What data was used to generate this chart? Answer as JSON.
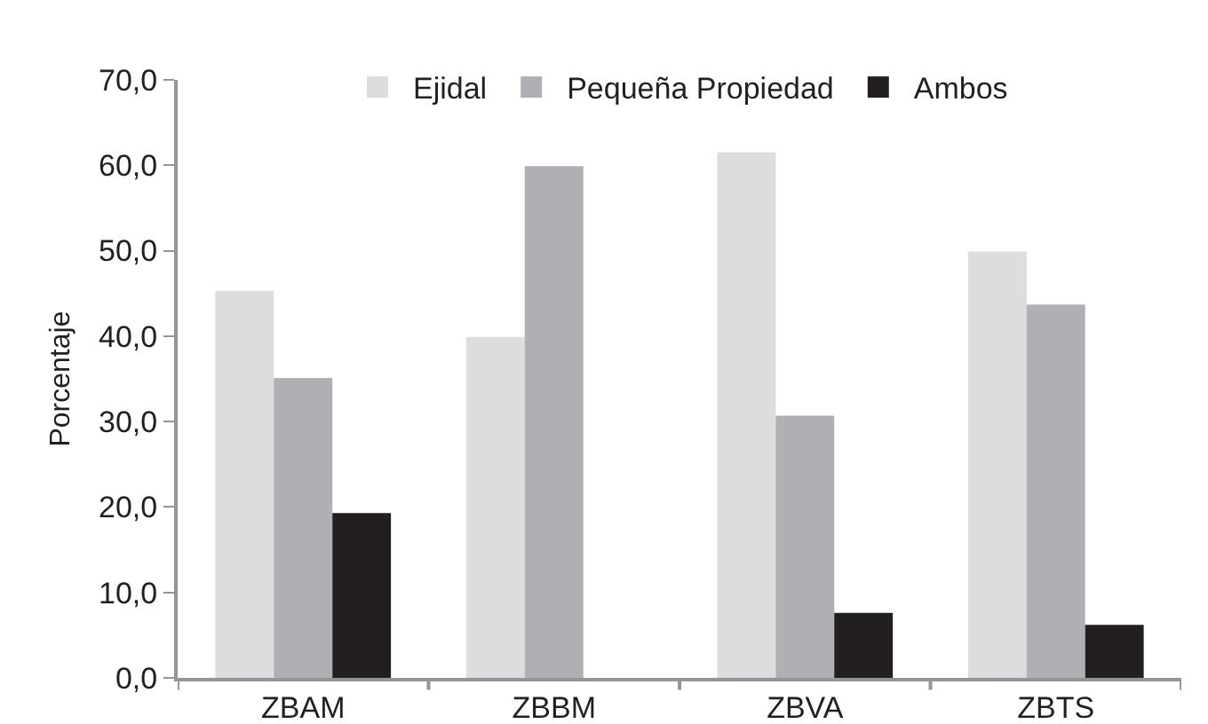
{
  "chart_data": {
    "type": "bar",
    "ylabel": "Porcentaje",
    "categories": [
      "ZBAM",
      "ZBBM",
      "ZBVA",
      "ZBTS"
    ],
    "series": [
      {
        "name": "Ejidal",
        "color": "#dcdddf",
        "values": [
          45.3,
          39.9,
          61.5,
          49.9
        ]
      },
      {
        "name": "Pequeña Propiedad",
        "color": "#afb0b3",
        "values": [
          35.1,
          59.9,
          30.7,
          43.7
        ]
      },
      {
        "name": "Ambos",
        "color": "#231f20",
        "values": [
          19.3,
          0,
          7.6,
          6.2
        ]
      }
    ],
    "ylim": [
      0,
      70
    ],
    "yticks": [
      {
        "value": 0,
        "label": "0,0"
      },
      {
        "value": 10,
        "label": "10,0"
      },
      {
        "value": 20,
        "label": "20,0"
      },
      {
        "value": 30,
        "label": "30,0"
      },
      {
        "value": 40,
        "label": "40,0"
      },
      {
        "value": 50,
        "label": "50,0"
      },
      {
        "value": 60,
        "label": "60,0"
      },
      {
        "value": 70,
        "label": "70,0"
      }
    ],
    "grid": false,
    "legend": "top"
  }
}
